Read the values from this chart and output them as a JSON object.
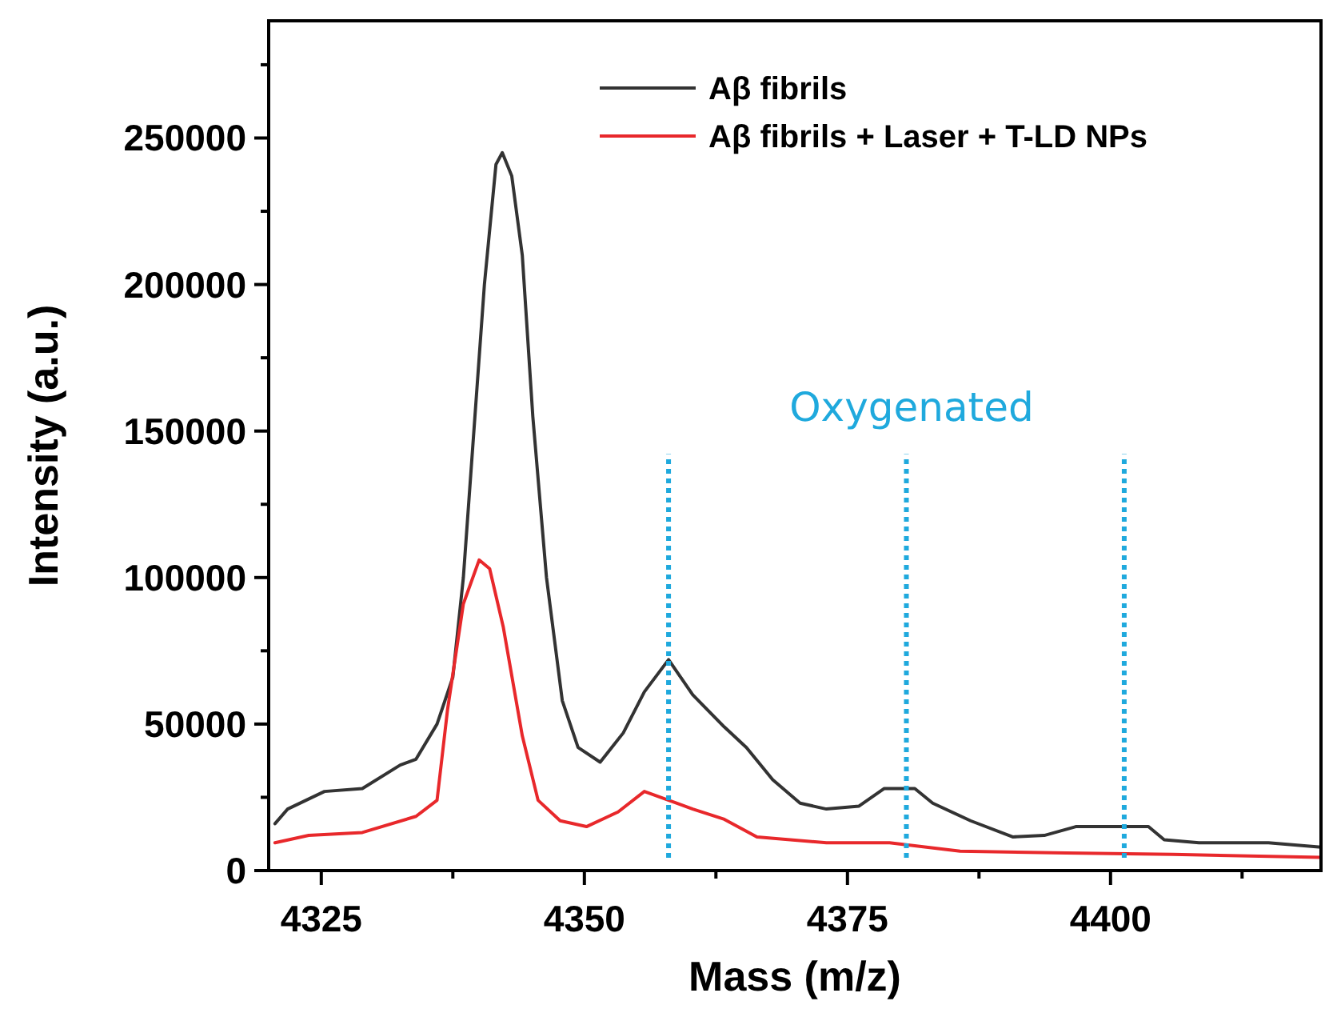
{
  "chart_data": {
    "type": "line",
    "xlabel": "Mass (m/z)",
    "ylabel": "Intensity (a.u.)",
    "xlim": [
      4320,
      4420
    ],
    "ylim": [
      0,
      290000
    ],
    "xticks": [
      4325,
      {
        "value": 4337.5,
        "label": null
      },
      4350,
      {
        "value": 4362.5,
        "label": null
      },
      4375,
      {
        "value": 4387.5,
        "label": null
      },
      4400,
      {
        "value": 4412.5,
        "label": null
      }
    ],
    "yticks": [
      0,
      {
        "value": 25000,
        "label": null
      },
      50000,
      {
        "value": 75000,
        "label": null
      },
      100000,
      {
        "value": 125000,
        "label": null
      },
      150000,
      {
        "value": 175000,
        "label": null
      },
      200000,
      {
        "value": 225000,
        "label": null
      },
      250000,
      {
        "value": 275000,
        "label": null
      }
    ],
    "legend": "top right",
    "grid": false,
    "marker": "none",
    "line_style": "solid",
    "series": [
      {
        "name": "Aβ fibrils",
        "color": "#333333",
        "x": [
          4320.6,
          4321.8,
          4325.3,
          4328.9,
          4332.5,
          4334,
          4336,
          4337.5,
          4338.5,
          4339.6,
          4340.5,
          4341.6,
          4342.2,
          4343.1,
          4344.1,
          4345.1,
          4346.4,
          4347.9,
          4349.4,
          4351.5,
          4353.7,
          4355.7,
          4358,
          4360.3,
          4363.3,
          4365.4,
          4367.9,
          4370.5,
          4373,
          4376.1,
          4378.5,
          4381.4,
          4383.1,
          4386.7,
          4390.7,
          4393.7,
          4396.7,
          4400.9,
          4403.6,
          4405.1,
          4408.4,
          4415,
          4420
        ],
        "values": [
          16000,
          21000,
          27000,
          28000,
          36000,
          38000,
          50000,
          66000,
          100000,
          155000,
          200000,
          241000,
          245000,
          237000,
          210000,
          155000,
          100000,
          58000,
          42000,
          37000,
          47000,
          61000,
          72000,
          60000,
          49000,
          42000,
          31000,
          23000,
          21000,
          22000,
          28000,
          28000,
          23000,
          17000,
          11500,
          12000,
          15000,
          15000,
          15000,
          10500,
          9500,
          9500,
          8000
        ]
      },
      {
        "name": "Aβ fibrils + Laser + T-LD NPs",
        "color": "#e8282b",
        "x": [
          4320.6,
          4323.8,
          4328.9,
          4334,
          4336,
          4337,
          4338.5,
          4340,
          4341,
          4342.3,
          4344.1,
          4345.6,
          4347.7,
          4350.2,
          4353.2,
          4355.7,
          4358.8,
          4360.3,
          4363.3,
          4366.4,
          4373,
          4379,
          4385.7,
          4395.8,
          4405.9,
          4420
        ],
        "values": [
          9500,
          12000,
          13000,
          18500,
          24000,
          55000,
          91000,
          106000,
          103000,
          83000,
          46000,
          24000,
          17000,
          15000,
          20000,
          27000,
          23000,
          21000,
          17500,
          11500,
          9500,
          9500,
          6600,
          6000,
          5500,
          4500
        ]
      }
    ],
    "ref_lines": [
      {
        "axis": "x",
        "value": 4358,
        "color": "#1fa9dd",
        "line_style": "dotted"
      },
      {
        "axis": "x",
        "value": 4380.6,
        "color": "#1fa9dd",
        "line_style": "dotted"
      },
      {
        "axis": "x",
        "value": 4401.3,
        "color": "#1fa9dd",
        "line_style": "dotted"
      }
    ],
    "annotations": [
      "Oxygenated"
    ]
  }
}
